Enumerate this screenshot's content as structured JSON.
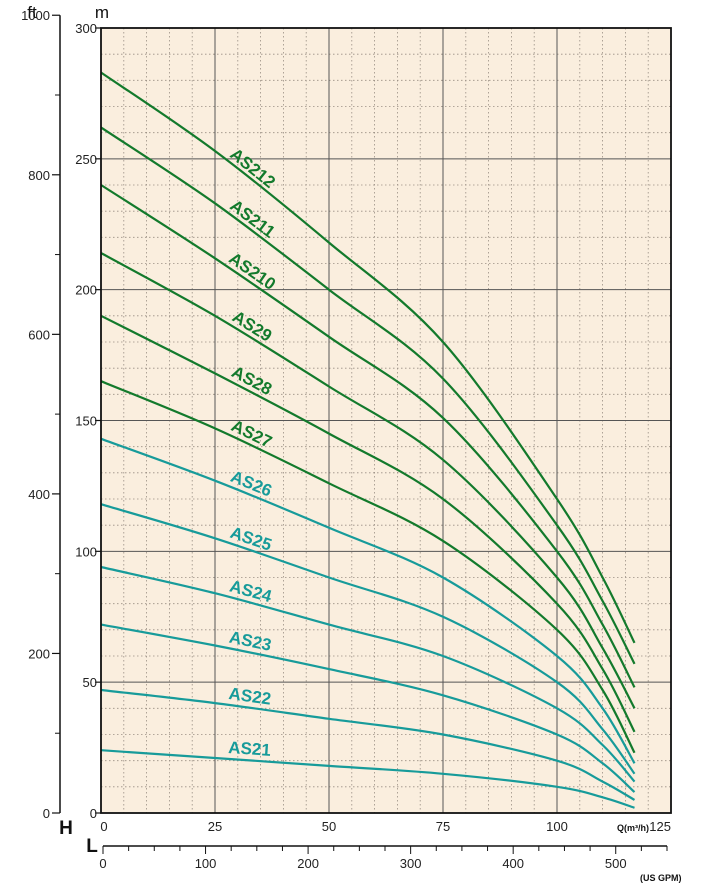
{
  "colors": {
    "background": "#faeede",
    "major_grid": "#555555",
    "minor_grid": "#9a8f84",
    "dark_green": "#137a2c",
    "teal": "#179b9a",
    "axis": "#111111"
  },
  "chart_data": {
    "type": "line",
    "title": "",
    "x_axis": {
      "unit_label": "Q(m³/h)",
      "range": [
        0,
        125
      ],
      "ticks": [
        0,
        25,
        50,
        75,
        100,
        125
      ],
      "tick_labels": [
        "0",
        "25",
        "50",
        "75",
        "100",
        "125"
      ]
    },
    "y_axis_m": {
      "letter": "H",
      "unit_label": "m",
      "range": [
        0,
        300
      ],
      "ticks": [
        0,
        50,
        100,
        150,
        200,
        250,
        300
      ],
      "tick_labels": [
        "0",
        "50",
        "100",
        "150",
        "200",
        "250",
        "300"
      ]
    },
    "y_axis_ft": {
      "unit_label": "ft",
      "range": [
        0,
        984
      ],
      "ticks": [
        0,
        200,
        400,
        600,
        800,
        1000
      ],
      "tick_labels": [
        "0",
        "200",
        "400",
        "600",
        "800",
        "1000"
      ]
    },
    "x_axis_gpm": {
      "letter": "L",
      "unit_label": "(US GPM)",
      "range": [
        0,
        550
      ],
      "ticks": [
        0,
        100,
        200,
        300,
        400,
        500
      ],
      "tick_labels": [
        "0",
        "100",
        "200",
        "300",
        "400",
        "500"
      ]
    },
    "grid": true,
    "x": [
      0,
      25,
      50,
      75,
      100,
      110,
      117
    ],
    "series": [
      {
        "name": "AS21",
        "color": "teal",
        "values": [
          24,
          21,
          18,
          15,
          10,
          6,
          2
        ]
      },
      {
        "name": "AS22",
        "color": "teal",
        "values": [
          47,
          42,
          36,
          30,
          20,
          12,
          5
        ]
      },
      {
        "name": "AS23",
        "color": "teal",
        "values": [
          72,
          64,
          55,
          45,
          30,
          19,
          8
        ]
      },
      {
        "name": "AS24",
        "color": "teal",
        "values": [
          94,
          84,
          72,
          60,
          40,
          26,
          12
        ]
      },
      {
        "name": "AS25",
        "color": "teal",
        "values": [
          118,
          105,
          90,
          75,
          50,
          32,
          15
        ]
      },
      {
        "name": "AS26",
        "color": "teal",
        "values": [
          143,
          127,
          109,
          90,
          60,
          40,
          19
        ]
      },
      {
        "name": "AS27",
        "color": "dark_green",
        "values": [
          165,
          147,
          126,
          104,
          70,
          47,
          23
        ]
      },
      {
        "name": "AS28",
        "color": "dark_green",
        "values": [
          190,
          168,
          145,
          120,
          80,
          55,
          31
        ]
      },
      {
        "name": "AS29",
        "color": "dark_green",
        "values": [
          214,
          190,
          163,
          135,
          90,
          63,
          40
        ]
      },
      {
        "name": "AS210",
        "color": "dark_green",
        "values": [
          240,
          212,
          182,
          151,
          100,
          72,
          48
        ]
      },
      {
        "name": "AS211",
        "color": "dark_green",
        "values": [
          262,
          233,
          200,
          166,
          110,
          81,
          57
        ]
      },
      {
        "name": "AS212",
        "color": "dark_green",
        "values": [
          283,
          253,
          218,
          180,
          120,
          90,
          65
        ]
      }
    ]
  }
}
